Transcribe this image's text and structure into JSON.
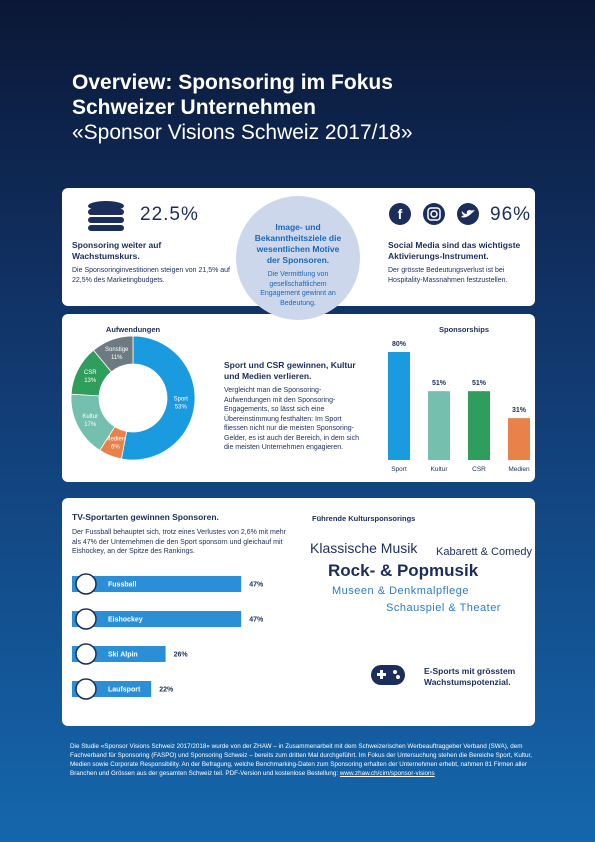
{
  "header": {
    "title_lines": [
      "Overview: Sponsoring im Fokus",
      "Schweizer Unternehmen"
    ],
    "subtitle": "«Sponsor Visions Schweiz 2017/18»"
  },
  "stat_left": {
    "value": "22.5%",
    "heading": "Sponsoring weiter auf Wachstumskurs.",
    "text": "Die Sponsoringinvestitionen steigen von 21,5% auf 22,5% des Marketingbudgets."
  },
  "center_bubble": {
    "heading": "Image- und Bekanntheitsziele die wesentlichen Motive der Sponsoren.",
    "text": "Die Vermittlung von gesellschaftlichem Engagement gewinnt an Bedeutung."
  },
  "stat_right": {
    "value": "96%",
    "heading": "Social Media sind das wichtigste Aktivierungs-Instrument.",
    "text": "Der grösste Bedeutungsverlust ist bei Hospitality-Massnahmen festzustellen."
  },
  "trend": {
    "heading": "Sport und CSR gewinnen, Kultur und Medien verlieren.",
    "text": "Vergleicht man die Sponsoring-Aufwendungen mit den Sponsoring-Engagements, so lässt sich eine Übereinstimmung festhalten: Im Sport fliessen nicht nur die meisten Sponsoring-Gelder, es ist auch der Bereich, in dem sich die meisten Unternehmen engagieren."
  },
  "tv": {
    "heading": "TV-Sportarten gewinnen Sponsoren.",
    "text": "Der Fussball behauptet sich, trotz eines Verlustes von 2,6% mit mehr als 47% der Unternehmen die den Sport sponsorn und gleichauf mit Eishockey, an der Spitze des Rankings."
  },
  "culture": {
    "title": "Führende Kultursponsorings",
    "items": [
      "Klassische Musik",
      "Kabarett & Comedy",
      "Rock- & Popmusik",
      "Museen & Denkmalpflege",
      "Schauspiel & Theater"
    ]
  },
  "esports": {
    "text": "E-Sports mit grösstem Wachstumspotenzial."
  },
  "footer": {
    "text": "Die Studie «Sponsor Visions Schweiz 2017/2018» wurde von der ZHAW – in Zusammenarbeit mit dem Schweizerischen Werbeauftraggeber Verband (SWA), dem Fachverband für Sponsoring (FASPO) und Sponsoring Schweiz – bereits zum dritten Mal durchgeführt. Im Fokus der Untersuchung stehen die Bereiche Sport, Kultur, Medien sowie Corporate Responsibility. An der Befragung, welche Benchmarking-Daten zum Sponsoring erhalten der Unternehmen erhebt, nahmen 81 Firmen aller Branchen und Grössen aus der gesamten Schweiz teil. PDF-Version und kostenlose Bestellung:",
    "link": "www.zhaw.ch/cim/sponsor-visions"
  },
  "chart_data": [
    {
      "type": "pie",
      "title": "Aufwendungen",
      "categories": [
        "Sport",
        "Medien",
        "Kultur",
        "CSR",
        "Sonstige"
      ],
      "values": [
        53,
        6,
        17,
        13,
        11
      ],
      "value_labels": [
        "53%",
        "6%",
        "17%",
        "13%",
        "11%"
      ],
      "colors": [
        "#1a9be0",
        "#e8814a",
        "#74bfae",
        "#2f9d5c",
        "#6e7a82"
      ]
    },
    {
      "type": "bar",
      "title": "Sponsorships",
      "categories": [
        "Sport",
        "Kultur",
        "CSR",
        "Medien"
      ],
      "values": [
        80,
        51,
        51,
        31
      ],
      "value_labels": [
        "80%",
        "51%",
        "51%",
        "31%"
      ],
      "colors": [
        "#1a9be0",
        "#74bfae",
        "#2f9d5c",
        "#e8814a"
      ]
    },
    {
      "type": "hbar",
      "categories": [
        "Fussball",
        "Eishockey",
        "Ski Alpin",
        "Laufsport"
      ],
      "values": [
        47,
        47,
        26,
        22
      ],
      "value_labels": [
        "47%",
        "47%",
        "26%",
        "22%"
      ],
      "color": "#2a8fd6"
    }
  ]
}
